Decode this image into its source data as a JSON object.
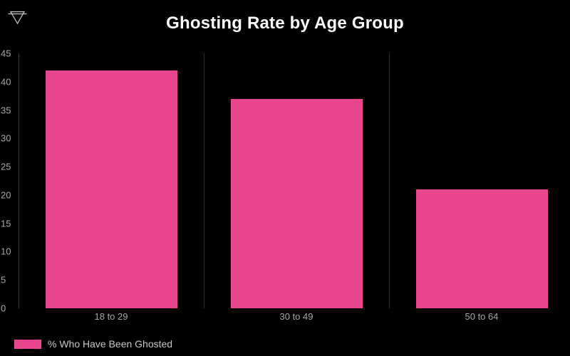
{
  "window": {
    "kind": "dashboard-bar-chart-visual"
  },
  "header": {
    "filter_icon": "filter-funnel-icon"
  },
  "chart_data": {
    "type": "bar",
    "title": "Ghosting Rate by Age Group",
    "categories": [
      "18 to 29",
      "30 to 49",
      "50 to 64"
    ],
    "series": [
      {
        "name": "% Who Have Been Ghosted",
        "values": [
          42,
          37,
          21
        ]
      }
    ],
    "xlabel": "",
    "ylabel": "",
    "ylim": [
      0,
      45
    ],
    "yticks": [
      0,
      5,
      10,
      15,
      20,
      25,
      30,
      35,
      40,
      45
    ],
    "grid": "vertical category separators only, no horizontal gridlines",
    "legend_position": "bottom-left"
  },
  "legend": {
    "label": "% Who Have Been Ghosted"
  },
  "colors": {
    "background": "#000000",
    "bar": "#e8478f",
    "title": "#ffffff",
    "axis_label": "#a6a6a6",
    "legend_text": "#c6c6c6",
    "axis_line": "#3a3a3a",
    "grid_line": "#2c2c2c",
    "icon": "#c8c8c8"
  }
}
